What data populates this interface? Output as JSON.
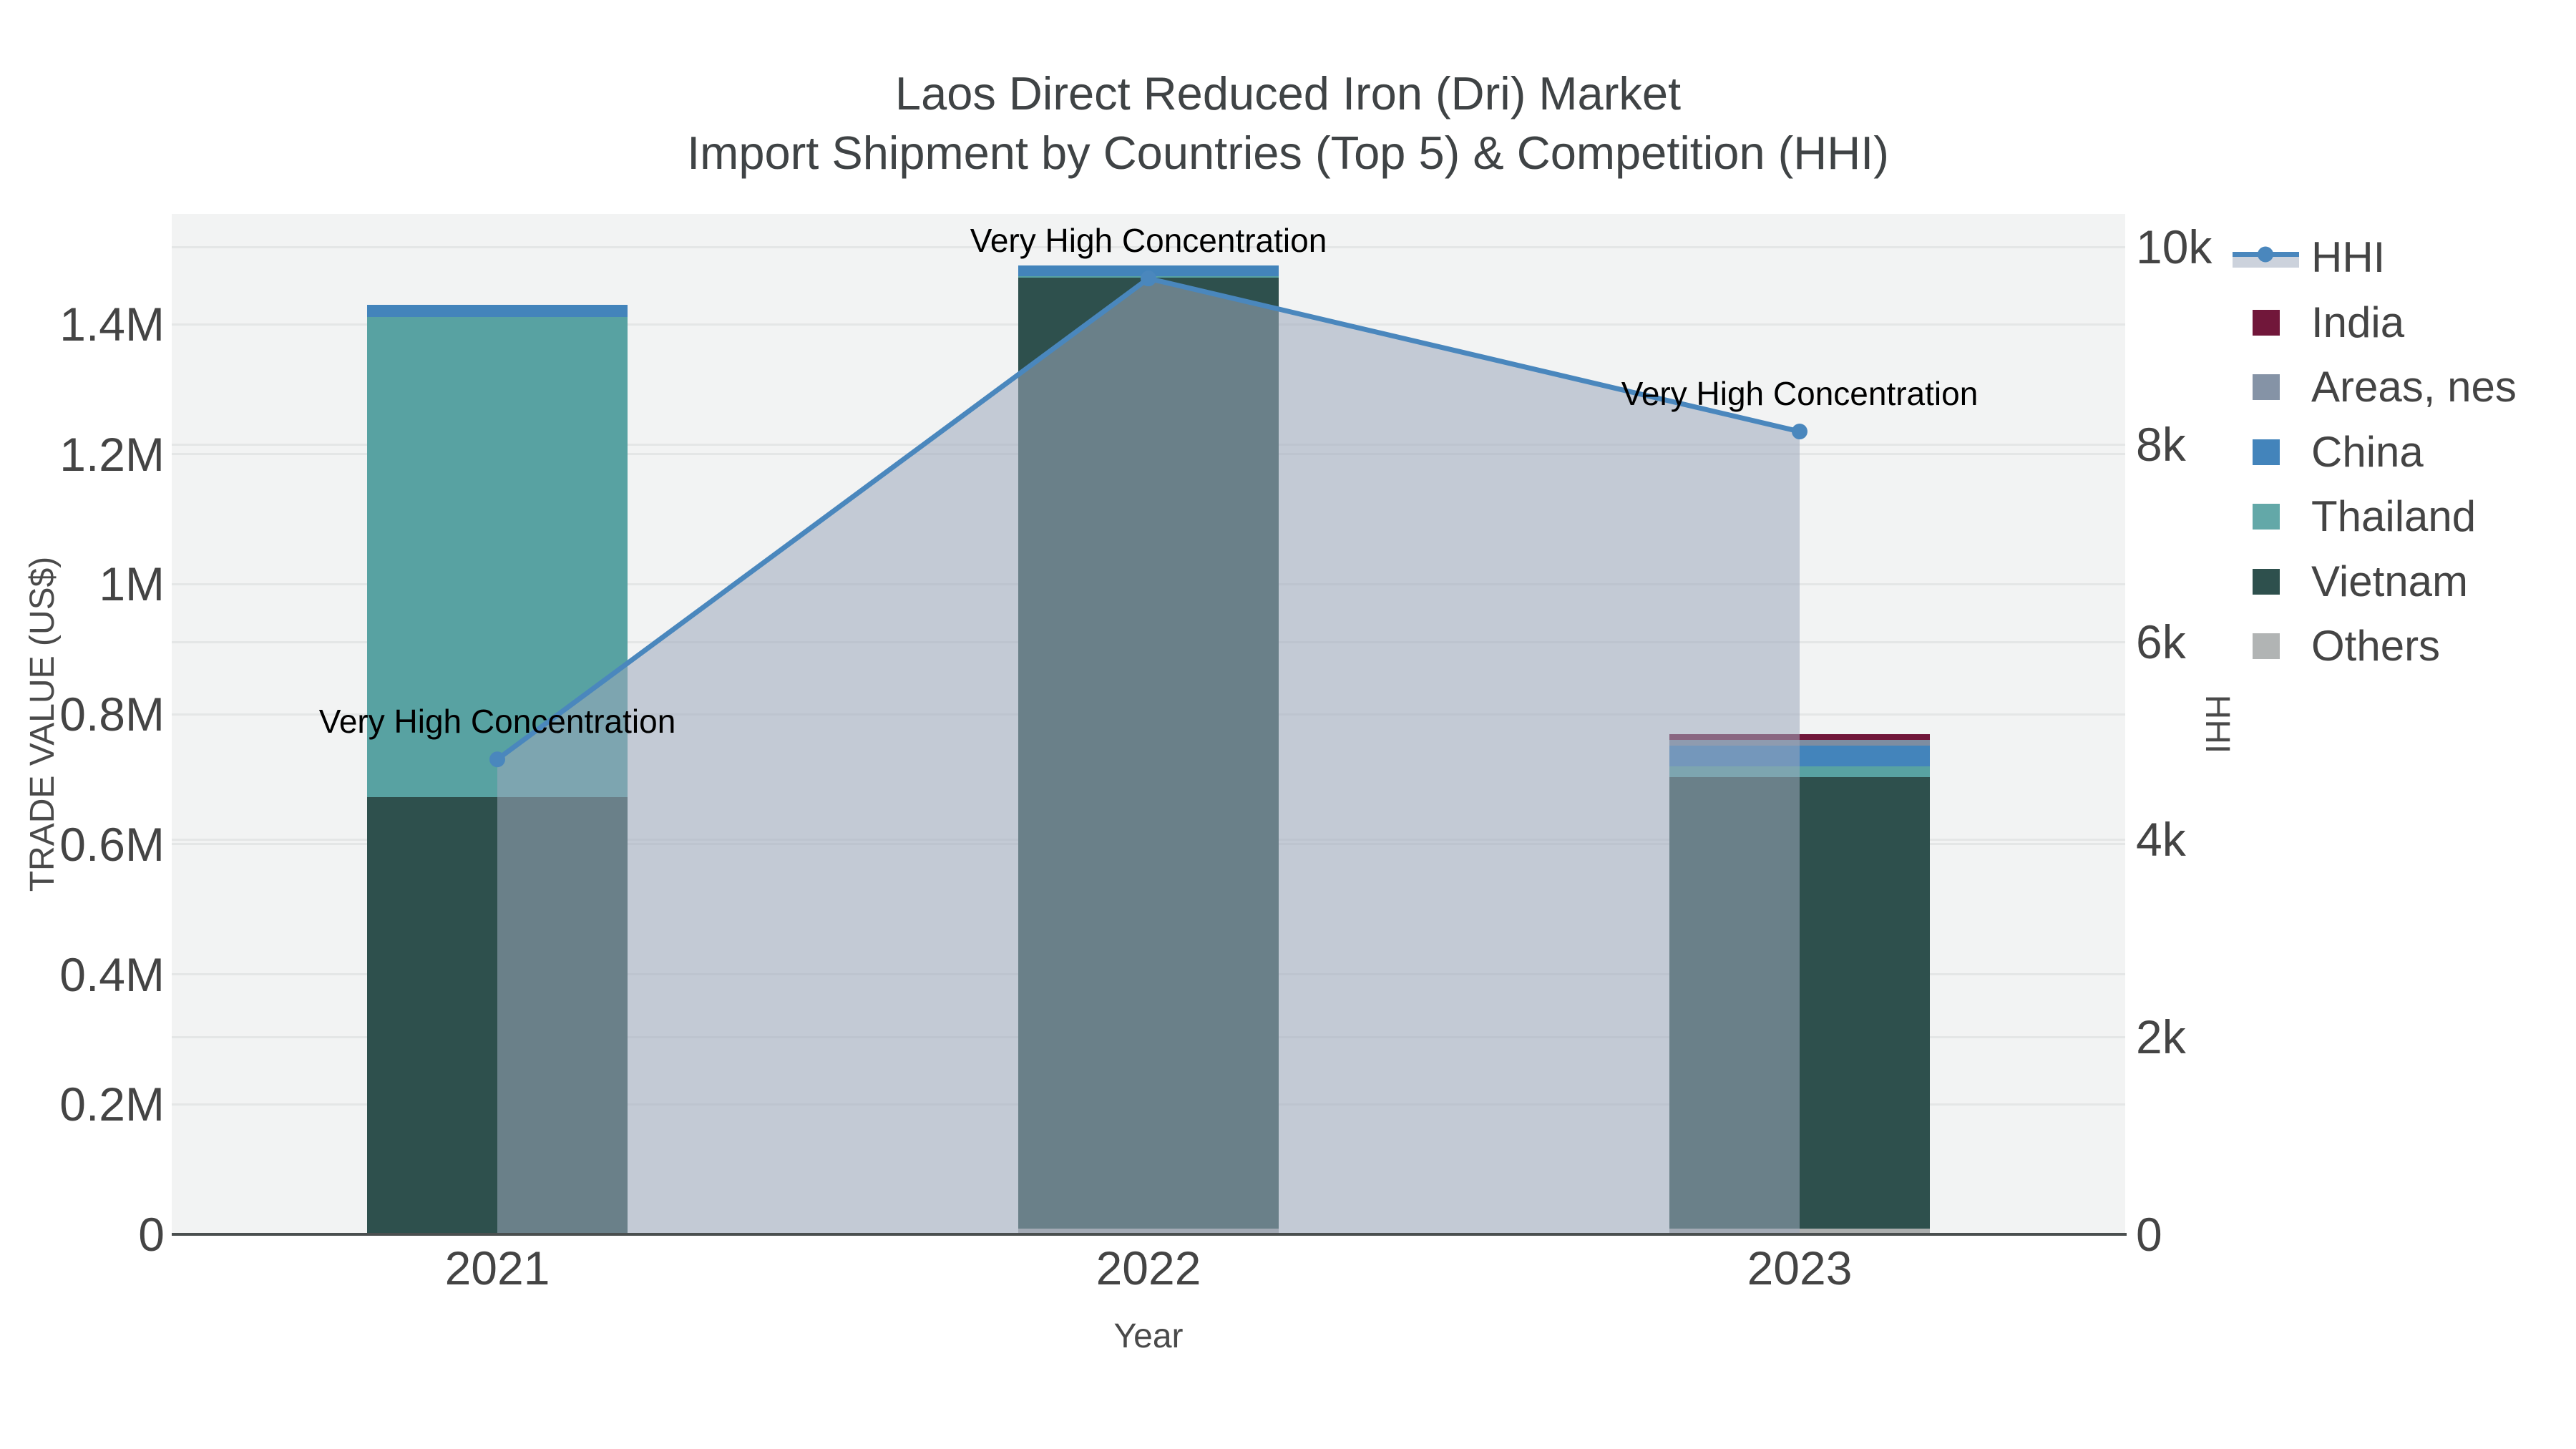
{
  "title": {
    "line1": "Laos Direct Reduced Iron (Dri) Market",
    "line2": "Import Shipment by Countries (Top 5) & Competition (HHI)"
  },
  "axes": {
    "x": {
      "title": "Year",
      "categories": [
        "2021",
        "2022",
        "2023"
      ]
    },
    "y_left": {
      "title": "TRADE VALUE (US$)",
      "tick_values": [
        0,
        200000,
        400000,
        600000,
        800000,
        1000000,
        1200000,
        1400000
      ],
      "tick_labels": [
        "0",
        "0.2M",
        "0.4M",
        "0.6M",
        "0.8M",
        "1M",
        "1.2M",
        "1.4M"
      ],
      "range": [
        0,
        1569000
      ]
    },
    "y_right": {
      "title": "HHI",
      "tick_values": [
        0,
        2000,
        4000,
        6000,
        8000,
        10000
      ],
      "tick_labels": [
        "0",
        "2k",
        "4k",
        "6k",
        "8k",
        "10k"
      ],
      "range": [
        0,
        10330
      ]
    }
  },
  "chart_data": {
    "type": "bar",
    "subtype": "stacked-bars-plus-line-with-area",
    "title": "Laos Direct Reduced Iron (Dri) Market Import Shipment by Countries (Top 5) & Competition (HHI)",
    "xlabel": "Year",
    "ylabel_left": "TRADE VALUE (US$)",
    "ylabel_right": "HHI",
    "categories": [
      "2021",
      "2022",
      "2023"
    ],
    "series": [
      {
        "name": "India",
        "color": "#71173a",
        "values": [
          0,
          0,
          8000
        ]
      },
      {
        "name": "Areas, nes",
        "color": "#7e8da1",
        "values": [
          0,
          0,
          9000
        ]
      },
      {
        "name": "China",
        "color": "#4384bb",
        "values": [
          19000,
          16000,
          32000
        ]
      },
      {
        "name": "Thailand",
        "color": "#58a2a2",
        "values": [
          738000,
          3000,
          17000
        ]
      },
      {
        "name": "Vietnam",
        "color": "#2e504d",
        "values": [
          673000,
          1462000,
          694000
        ]
      },
      {
        "name": "Others",
        "color": "#abaeae",
        "values": [
          0,
          9000,
          9000
        ]
      }
    ],
    "stack_order_bottom_to_top": [
      "Others",
      "Vietnam",
      "Thailand",
      "China",
      "Areas, nes",
      "India"
    ],
    "bar_totals": [
      1430000,
      1490000,
      769000
    ],
    "line_series": {
      "name": "HHI",
      "axis": "y_right",
      "color": "#4a87bd",
      "area_fill": "rgba(157,168,188,0.55)",
      "values": [
        4810,
        9680,
        8130
      ]
    },
    "annotations": [
      {
        "text": "Very High Concentration",
        "category": "2021"
      },
      {
        "text": "Very High Concentration",
        "category": "2022"
      },
      {
        "text": "Very High Concentration",
        "category": "2023"
      }
    ],
    "grid": true,
    "legend_position": "right"
  },
  "legend": {
    "items": [
      {
        "label": "HHI",
        "swatch": "hhi-line"
      },
      {
        "label": "India",
        "swatch": "square",
        "color": "#71173a"
      },
      {
        "label": "Areas, nes",
        "swatch": "square",
        "color": "#8593a6"
      },
      {
        "label": "China",
        "swatch": "square",
        "color": "#4384bb"
      },
      {
        "label": "Thailand",
        "swatch": "square",
        "color": "#63a8a8"
      },
      {
        "label": "Vietnam",
        "swatch": "square",
        "color": "#2e504d"
      },
      {
        "label": "Others",
        "swatch": "square",
        "color": "#b1b4b4"
      }
    ]
  },
  "colors": {
    "background": "#ffffff",
    "plot_background": "#f2f3f3",
    "gridline": "#e4e6e6",
    "axis_line": "#4a4f4f",
    "tick_text": "#444444",
    "title_text": "#3f4345",
    "annotation_text": "#000000",
    "hhi_line": "#4a87bd",
    "hhi_area": "rgba(157,168,188,0.55)",
    "legend_hhi_band": "#ccd2dc"
  }
}
